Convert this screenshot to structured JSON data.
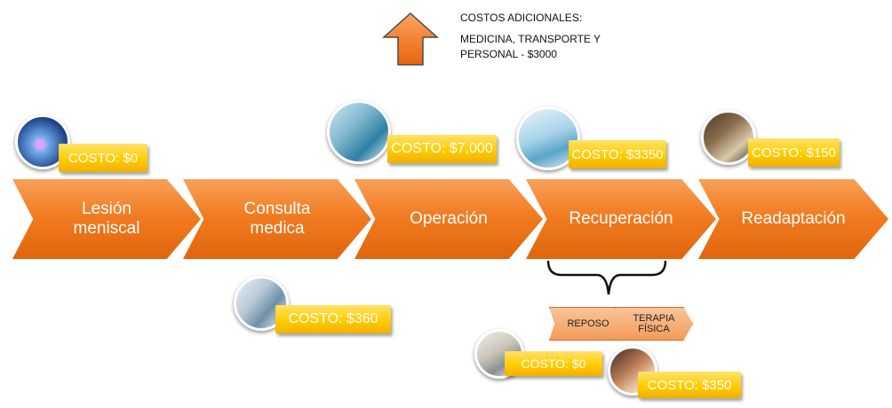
{
  "note": {
    "title": "COSTOS ADICIONALES:",
    "body": "MEDICINA, TRANSPORTE Y PERSONAL - $3000",
    "arrow_icon": "up-arrow-icon",
    "arrow_color": "#f47c20"
  },
  "steps": [
    {
      "label": "Lesión meniscal",
      "cost": "COSTO: $0"
    },
    {
      "label": "Consulta medica",
      "cost": "COSTO: $360"
    },
    {
      "label": "Operación",
      "cost": "COSTO: $7,000"
    },
    {
      "label": "Recuperación",
      "cost": "COSTO: $3350"
    },
    {
      "label": "Readaptación",
      "cost": "COSTO: $150"
    }
  ],
  "recovery": {
    "phases": [
      {
        "label": "REPOSO",
        "cost": "COSTO: $0"
      },
      {
        "label": "TERAPIA FÍSICA",
        "cost": "COSTO: $350"
      }
    ]
  },
  "colors": {
    "chevron": "#f27c22",
    "badge": "#ffcc00",
    "badge_text": "#ffffff"
  }
}
